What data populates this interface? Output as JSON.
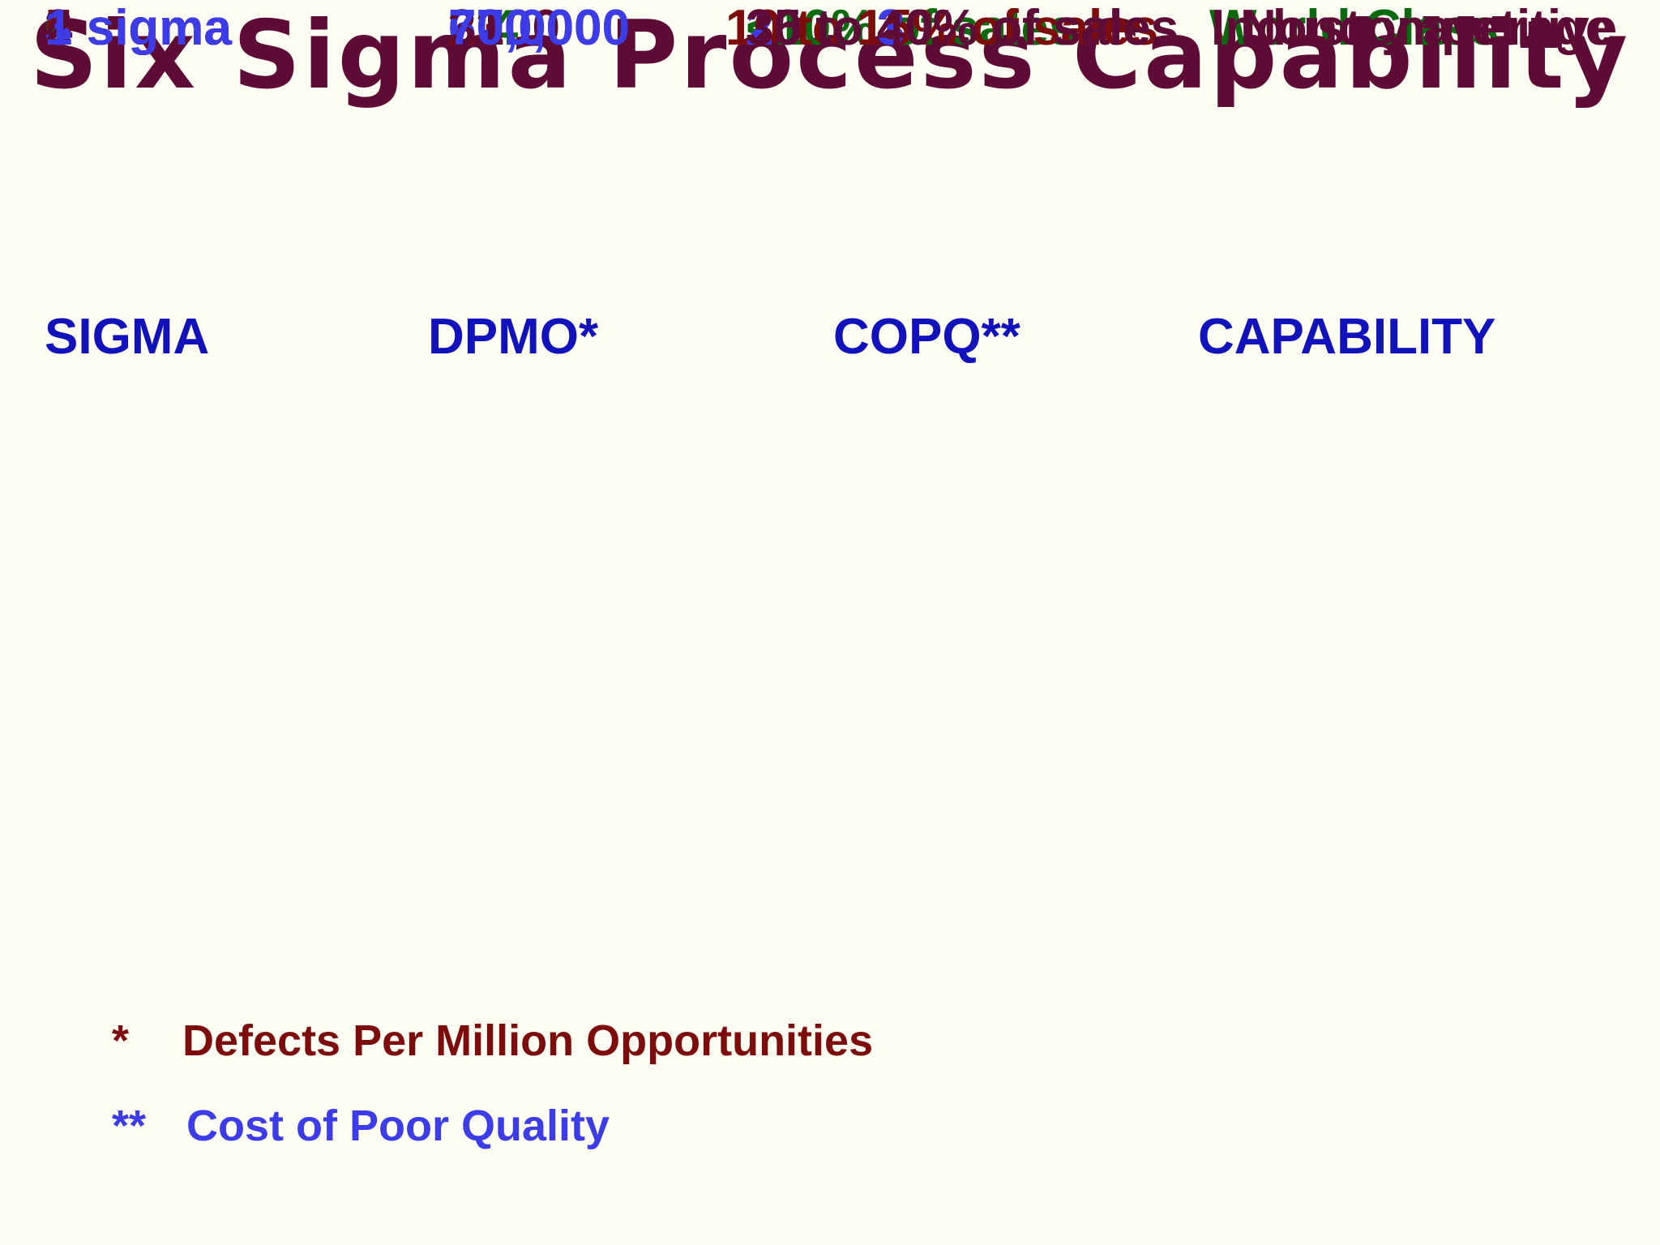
{
  "title": "Six Sigma Process Capability",
  "headers": {
    "sigma": "SIGMA",
    "dpmo": "DPMO*",
    "copq": "COPQ**",
    "capability": "CAPABILITY"
  },
  "rows": [
    {
      "sigma": "6 sigma",
      "dpmo": "3.4",
      "copq": "<10% of sales",
      "capability": "World Class",
      "color": "#0b6a10"
    },
    {
      "sigma": "5 sigma",
      "dpmo": "230",
      "copq": "10 to 15% of sales",
      "capability": "",
      "color": "#7d0c0c"
    },
    {
      "sigma": "4 sigma",
      "dpmo": "6200",
      "copq": "15 to 20% of sales",
      "capability": "Industry average",
      "color": "#5e0b35"
    },
    {
      "sigma": "3 sigma",
      "dpmo": "67,000",
      "copq": "20 to 30% of sales",
      "capability": "",
      "color": "#3c3ce8"
    },
    {
      "sigma": "2 sigma",
      "dpmo": "310,000",
      "copq": "30 to 40% of sales",
      "capability": "Noncompetitive",
      "color": "#5e0b35"
    },
    {
      "sigma": "1 sigma",
      "dpmo": "700,000",
      "copq": "",
      "capability": "",
      "color": "#3c3ce8"
    }
  ],
  "footnotes": [
    {
      "marker": "*",
      "text": "Defects Per Million Opportunities",
      "color": "#7d0c0c"
    },
    {
      "marker": "**",
      "text": "Cost of Poor Quality",
      "color": "#3c3ce8"
    }
  ],
  "colors": {
    "background": "#fdfdf3",
    "title": "#5e0b35",
    "header": "#1212bb"
  }
}
